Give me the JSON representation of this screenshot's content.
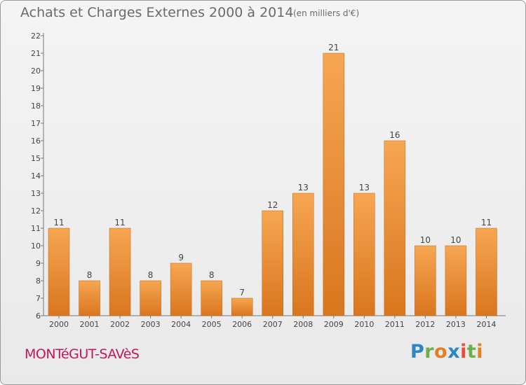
{
  "header": {
    "title": "Achats et Charges Externes 2000 à 2014",
    "unit": "(en milliers d'€)"
  },
  "footer": {
    "commune": "MONTéGUT-SAVèS",
    "logo": "Proxiti"
  },
  "colors": {
    "bar_light": "#f6a652",
    "bar_dark": "#d9761e",
    "commune": "#c2185b"
  },
  "chart_data": {
    "type": "bar",
    "title": "Achats et Charges Externes 2000 à 2014",
    "subtitle": "(en milliers d'€)",
    "xlabel": "",
    "ylabel": "",
    "categories": [
      "2000",
      "2001",
      "2002",
      "2003",
      "2004",
      "2005",
      "2006",
      "2007",
      "2008",
      "2009",
      "2010",
      "2011",
      "2012",
      "2013",
      "2014"
    ],
    "values": [
      11,
      8,
      11,
      8,
      9,
      8,
      7,
      12,
      13,
      21,
      13,
      16,
      10,
      10,
      11
    ],
    "ylim": [
      6,
      22
    ],
    "yticks": [
      6,
      7,
      8,
      9,
      10,
      11,
      12,
      13,
      14,
      15,
      16,
      17,
      18,
      19,
      20,
      21,
      22
    ],
    "grid": false,
    "legend": "none",
    "data_labels": true
  }
}
